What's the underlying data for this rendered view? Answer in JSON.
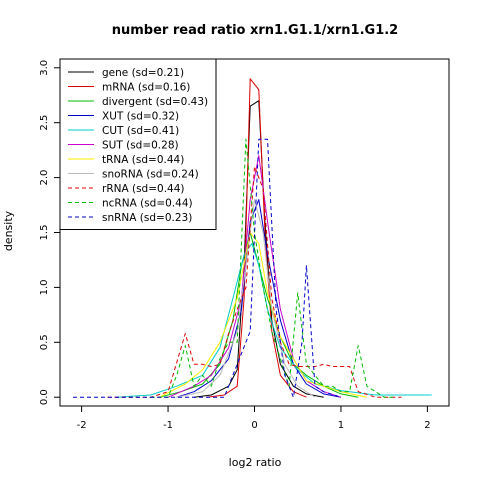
{
  "chart_data": {
    "type": "line",
    "title": "number read ratio xrn1.G1.1/xrn1.G1.2",
    "xlabel": "log2 ratio",
    "ylabel": "density",
    "xlim": [
      -2.25,
      2.25
    ],
    "ylim": [
      -0.08,
      3.08
    ],
    "xticks": [
      -2,
      -1,
      0,
      1,
      2
    ],
    "yticks": [
      0.0,
      0.5,
      1.0,
      1.5,
      2.0,
      2.5,
      3.0
    ],
    "xtick_labels": [
      "-2",
      "-1",
      "0",
      "1",
      "2"
    ],
    "ytick_labels": [
      "0.0",
      "0.5",
      "1.0",
      "1.5",
      "2.0",
      "2.5",
      "3.0"
    ],
    "grid": false,
    "legend_position": "top-left",
    "series": [
      {
        "name": "gene (sd=0.21)",
        "color": "#000000",
        "dash": false,
        "points": [
          [
            -0.7,
            0
          ],
          [
            -0.5,
            0.02
          ],
          [
            -0.3,
            0.1
          ],
          [
            -0.2,
            0.25
          ],
          [
            -0.12,
            1.2
          ],
          [
            -0.05,
            2.65
          ],
          [
            0.05,
            2.7
          ],
          [
            0.12,
            1.6
          ],
          [
            0.2,
            0.7
          ],
          [
            0.3,
            0.3
          ],
          [
            0.45,
            0.1
          ],
          [
            0.6,
            0.03
          ],
          [
            0.8,
            0
          ]
        ]
      },
      {
        "name": "mRNA (sd=0.16)",
        "color": "#dd0000",
        "dash": false,
        "points": [
          [
            -0.55,
            0
          ],
          [
            -0.35,
            0.02
          ],
          [
            -0.2,
            0.1
          ],
          [
            -0.12,
            0.9
          ],
          [
            -0.05,
            2.9
          ],
          [
            0.05,
            2.8
          ],
          [
            0.12,
            1.5
          ],
          [
            0.2,
            0.6
          ],
          [
            0.3,
            0.2
          ],
          [
            0.45,
            0.05
          ],
          [
            0.6,
            0
          ]
        ]
      },
      {
        "name": "divergent (sd=0.43)",
        "color": "#00bb00",
        "dash": false,
        "points": [
          [
            -1.1,
            0
          ],
          [
            -0.85,
            0.05
          ],
          [
            -0.6,
            0.12
          ],
          [
            -0.4,
            0.3
          ],
          [
            -0.25,
            0.7
          ],
          [
            -0.15,
            1.2
          ],
          [
            -0.05,
            1.5
          ],
          [
            0.05,
            1.2
          ],
          [
            0.15,
            0.9
          ],
          [
            0.3,
            0.55
          ],
          [
            0.45,
            0.3
          ],
          [
            0.6,
            0.2
          ],
          [
            0.8,
            0.1
          ],
          [
            1.0,
            0.03
          ],
          [
            1.2,
            0
          ]
        ]
      },
      {
        "name": "XUT (sd=0.32)",
        "color": "#0000cc",
        "dash": false,
        "points": [
          [
            -0.9,
            0
          ],
          [
            -0.7,
            0.05
          ],
          [
            -0.5,
            0.15
          ],
          [
            -0.3,
            0.35
          ],
          [
            -0.15,
            0.8
          ],
          [
            -0.05,
            1.6
          ],
          [
            0.05,
            1.8
          ],
          [
            0.15,
            1.3
          ],
          [
            0.3,
            0.7
          ],
          [
            0.45,
            0.3
          ],
          [
            0.6,
            0.12
          ],
          [
            0.8,
            0.03
          ],
          [
            1.0,
            0
          ]
        ]
      },
      {
        "name": "CUT (sd=0.41)",
        "color": "#00cccc",
        "dash": false,
        "points": [
          [
            -1.6,
            0
          ],
          [
            -1.2,
            0.02
          ],
          [
            -0.9,
            0.1
          ],
          [
            -0.6,
            0.2
          ],
          [
            -0.4,
            0.45
          ],
          [
            -0.25,
            0.9
          ],
          [
            -0.12,
            1.3
          ],
          [
            -0.03,
            1.4
          ],
          [
            0.05,
            1.2
          ],
          [
            0.15,
            0.8
          ],
          [
            0.3,
            0.45
          ],
          [
            0.5,
            0.25
          ],
          [
            0.7,
            0.12
          ],
          [
            1.0,
            0.06
          ],
          [
            1.4,
            0.02
          ],
          [
            2.05,
            0.02
          ]
        ]
      },
      {
        "name": "SUT (sd=0.28)",
        "color": "#cc00cc",
        "dash": false,
        "points": [
          [
            -1.0,
            0
          ],
          [
            -0.7,
            0.1
          ],
          [
            -0.5,
            0.2
          ],
          [
            -0.3,
            0.45
          ],
          [
            -0.15,
            0.9
          ],
          [
            -0.05,
            1.8
          ],
          [
            0.05,
            2.2
          ],
          [
            0.15,
            1.6
          ],
          [
            0.3,
            0.8
          ],
          [
            0.45,
            0.35
          ],
          [
            0.6,
            0.15
          ],
          [
            0.8,
            0.05
          ],
          [
            1.0,
            0
          ]
        ]
      },
      {
        "name": "tRNA (sd=0.44)",
        "color": "#ffee00",
        "dash": false,
        "points": [
          [
            -1.1,
            0
          ],
          [
            -0.8,
            0.12
          ],
          [
            -0.6,
            0.25
          ],
          [
            -0.4,
            0.5
          ],
          [
            -0.2,
            0.9
          ],
          [
            -0.05,
            1.5
          ],
          [
            0.05,
            1.4
          ],
          [
            0.15,
            0.95
          ],
          [
            0.3,
            0.55
          ],
          [
            0.45,
            0.35
          ],
          [
            0.6,
            0.15
          ],
          [
            0.8,
            0.1
          ],
          [
            1.0,
            0.05
          ],
          [
            1.3,
            0
          ]
        ]
      },
      {
        "name": "snoRNA (sd=0.24)",
        "color": "#bbbbbb",
        "dash": false,
        "points": [
          [
            -0.9,
            0
          ],
          [
            -0.6,
            0.05
          ],
          [
            -0.4,
            0.2
          ],
          [
            -0.2,
            0.6
          ],
          [
            -0.1,
            1.2
          ],
          [
            0.0,
            1.8
          ],
          [
            0.1,
            1.5
          ],
          [
            0.2,
            0.8
          ],
          [
            0.35,
            0.3
          ],
          [
            0.5,
            0.1
          ],
          [
            0.7,
            0
          ]
        ]
      },
      {
        "name": "rRNA (sd=0.44)",
        "color": "#dd0000",
        "dash": true,
        "points": [
          [
            -1.7,
            0
          ],
          [
            -1.2,
            0
          ],
          [
            -1.0,
            0.05
          ],
          [
            -0.8,
            0.58
          ],
          [
            -0.7,
            0.3
          ],
          [
            -0.6,
            0.3
          ],
          [
            -0.5,
            0.28
          ],
          [
            -0.4,
            0.3
          ],
          [
            -0.3,
            0.58
          ],
          [
            -0.2,
            0.8
          ],
          [
            -0.1,
            1.0
          ],
          [
            0.0,
            2.1
          ],
          [
            0.1,
            1.9
          ],
          [
            0.2,
            0.9
          ],
          [
            0.3,
            0.5
          ],
          [
            0.4,
            0.3
          ],
          [
            0.5,
            0.28
          ],
          [
            0.6,
            0.28
          ],
          [
            0.7,
            0.28
          ],
          [
            0.8,
            0.3
          ],
          [
            0.9,
            0.28
          ],
          [
            1.0,
            0.28
          ],
          [
            1.1,
            0.28
          ],
          [
            1.2,
            0.05
          ],
          [
            1.4,
            0
          ],
          [
            1.7,
            0
          ]
        ]
      },
      {
        "name": "ncRNA (sd=0.44)",
        "color": "#00bb00",
        "dash": true,
        "points": [
          [
            -1.2,
            0
          ],
          [
            -1.0,
            0
          ],
          [
            -0.9,
            0.2
          ],
          [
            -0.8,
            0.47
          ],
          [
            -0.7,
            0.1
          ],
          [
            -0.6,
            0.2
          ],
          [
            -0.5,
            0.1
          ],
          [
            -0.4,
            0.35
          ],
          [
            -0.3,
            0.5
          ],
          [
            -0.2,
            0.5
          ],
          [
            -0.1,
            2.35
          ],
          [
            0.0,
            1.5
          ],
          [
            0.1,
            1.0
          ],
          [
            0.2,
            0.6
          ],
          [
            0.3,
            0.35
          ],
          [
            0.4,
            0.1
          ],
          [
            0.5,
            0.95
          ],
          [
            0.6,
            0.3
          ],
          [
            0.7,
            0.2
          ],
          [
            0.8,
            0.1
          ],
          [
            0.9,
            0.1
          ],
          [
            1.0,
            0.05
          ],
          [
            1.1,
            0.05
          ],
          [
            1.2,
            0.47
          ],
          [
            1.3,
            0.1
          ],
          [
            1.5,
            0
          ],
          [
            1.6,
            0
          ]
        ]
      },
      {
        "name": "snRNA (sd=0.23)",
        "color": "#0000cc",
        "dash": true,
        "points": [
          [
            -2.1,
            0
          ],
          [
            -1.0,
            0
          ],
          [
            -0.35,
            0
          ],
          [
            -0.25,
            0.2
          ],
          [
            -0.15,
            0.4
          ],
          [
            -0.05,
            0.6
          ],
          [
            0.05,
            2.35
          ],
          [
            0.15,
            2.35
          ],
          [
            0.25,
            0.8
          ],
          [
            0.35,
            0.2
          ],
          [
            0.45,
            0
          ],
          [
            0.55,
            0.5
          ],
          [
            0.6,
            1.2
          ],
          [
            0.7,
            0.1
          ],
          [
            0.8,
            0.05
          ],
          [
            1.0,
            0
          ]
        ]
      }
    ]
  }
}
